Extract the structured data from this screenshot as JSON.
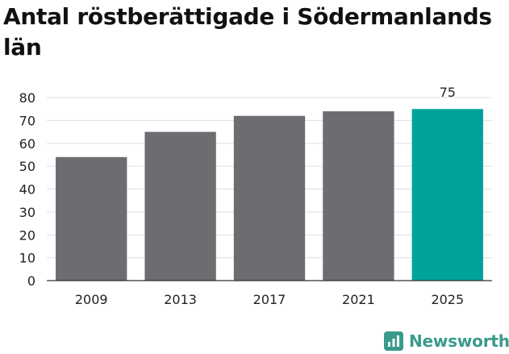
{
  "chart_data": {
    "type": "bar",
    "title": "Antal röstberättigade i Södermanlands län",
    "categories": [
      "2009",
      "2013",
      "2017",
      "2021",
      "2025"
    ],
    "values": [
      54,
      65,
      72,
      74,
      75
    ],
    "ylim": [
      0,
      80
    ],
    "yticks": [
      0,
      10,
      20,
      30,
      40,
      50,
      60,
      70,
      80
    ],
    "data_labels": [
      {
        "index": 4,
        "text": "75"
      }
    ],
    "grid": true,
    "colors": {
      "bar": "#6d6c71",
      "highlight": "#00a39a",
      "grid": "#dddddd",
      "axis": "#333333"
    }
  },
  "brand": {
    "name": "Newsworthy",
    "color": "#3a9a8a"
  }
}
